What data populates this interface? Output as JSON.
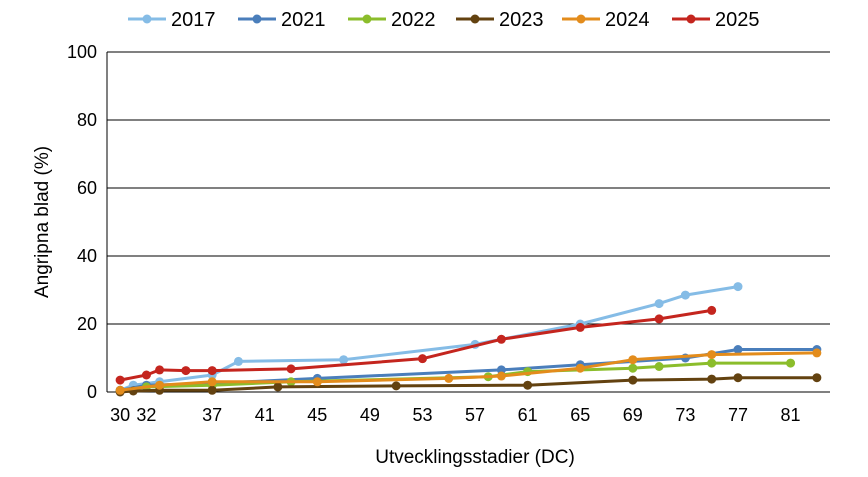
{
  "chart_data": {
    "type": "line",
    "xlabel": "Utvecklingsstadier (DC)",
    "ylabel": "Angripna blad (%)",
    "xlim": [
      29,
      84
    ],
    "ylim": [
      0,
      100
    ],
    "x_ticks": [
      30,
      32,
      37,
      41,
      45,
      49,
      53,
      57,
      61,
      65,
      69,
      73,
      77,
      81
    ],
    "y_ticks": [
      0,
      20,
      40,
      60,
      80,
      100
    ],
    "grid": "horizontal",
    "legend_position": "top",
    "series": [
      {
        "name": "2017",
        "color": "#85bce6",
        "points": [
          [
            30,
            0.5
          ],
          [
            31,
            2
          ],
          [
            33,
            3
          ],
          [
            37,
            5
          ],
          [
            39,
            9
          ],
          [
            47,
            9.5
          ],
          [
            57,
            14
          ],
          [
            65,
            20
          ],
          [
            71,
            26
          ],
          [
            73,
            28.5
          ],
          [
            77,
            31
          ]
        ]
      },
      {
        "name": "2021",
        "color": "#4a7ebb",
        "points": [
          [
            30,
            0.5
          ],
          [
            32,
            2
          ],
          [
            37,
            2.5
          ],
          [
            45,
            4
          ],
          [
            59,
            6.5
          ],
          [
            65,
            8
          ],
          [
            73,
            10
          ],
          [
            77,
            12.5
          ],
          [
            83,
            12.5
          ]
        ]
      },
      {
        "name": "2022",
        "color": "#8bbd2b",
        "points": [
          [
            30,
            0.3
          ],
          [
            32,
            1.5
          ],
          [
            37,
            2
          ],
          [
            43,
            3
          ],
          [
            58,
            4.5
          ],
          [
            61,
            6
          ],
          [
            69,
            7
          ],
          [
            71,
            7.5
          ],
          [
            75,
            8.5
          ],
          [
            81,
            8.5
          ]
        ]
      },
      {
        "name": "2023",
        "color": "#634210",
        "points": [
          [
            30,
            0
          ],
          [
            31,
            0.3
          ],
          [
            33,
            0.5
          ],
          [
            37,
            0.5
          ],
          [
            42,
            1.5
          ],
          [
            51,
            1.8
          ],
          [
            61,
            2
          ],
          [
            69,
            3.5
          ],
          [
            75,
            3.8
          ],
          [
            77,
            4.2
          ],
          [
            83,
            4.2
          ]
        ]
      },
      {
        "name": "2024",
        "color": "#e38c1c",
        "points": [
          [
            30,
            0.5
          ],
          [
            33,
            2
          ],
          [
            37,
            3
          ],
          [
            45,
            3
          ],
          [
            55,
            4
          ],
          [
            59,
            4.7
          ],
          [
            65,
            7
          ],
          [
            69,
            9.5
          ],
          [
            75,
            11
          ],
          [
            83,
            11.5
          ]
        ]
      },
      {
        "name": "2025",
        "color": "#c4251e",
        "points": [
          [
            30,
            3.5
          ],
          [
            32,
            5
          ],
          [
            33,
            6.5
          ],
          [
            35,
            6.3
          ],
          [
            37,
            6.3
          ],
          [
            43,
            6.8
          ],
          [
            53,
            9.8
          ],
          [
            59,
            15.5
          ],
          [
            65,
            19
          ],
          [
            71,
            21.5
          ],
          [
            75,
            24
          ]
        ]
      }
    ]
  }
}
